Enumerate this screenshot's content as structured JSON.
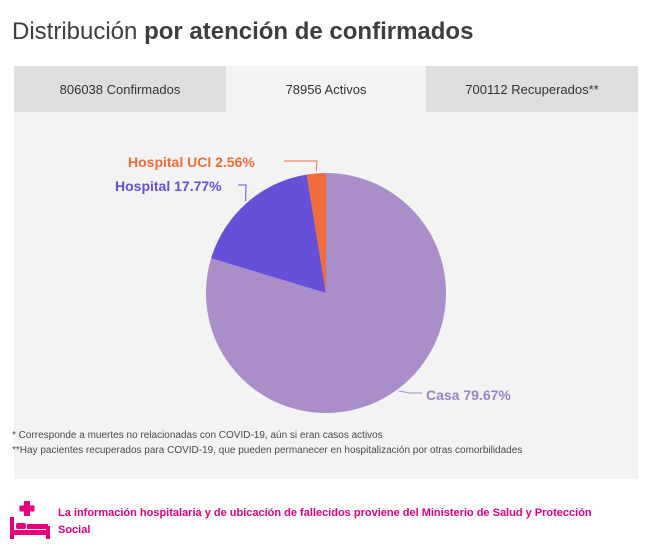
{
  "title": {
    "part1": "Distribución",
    "part2": "por atención de confirmados"
  },
  "tabs": [
    {
      "label": "806038 Confirmados",
      "active": false
    },
    {
      "label": "78956 Activos",
      "active": true
    },
    {
      "label": "700112 Recuperados**",
      "active": false
    }
  ],
  "chart_data": {
    "type": "pie",
    "title": "",
    "slices": [
      {
        "label": "Casa 79.67%",
        "name": "Casa",
        "value": 79.67,
        "color": "#a98ec9"
      },
      {
        "label": "Hospital 17.77%",
        "name": "Hospital",
        "value": 17.77,
        "color": "#6650d8"
      },
      {
        "label": "Hospital UCI 2.56%",
        "name": "Hospital UCI",
        "value": 2.56,
        "color": "#f26b3a"
      }
    ],
    "label_colors": {
      "Casa": "#9b82c4",
      "Hospital": "#6650d8",
      "Hospital UCI": "#f26b3a"
    }
  },
  "footnotes": [
    "* Corresponde a muertes no relacionadas con COVID-19, aún si eran casos activos",
    "**Hay pacientes recuperados para COVID-19, que pueden permanecer en hospitalización por otras comorbilidades"
  ],
  "info": {
    "text": "La información hospitalaria y de ubicación de fallecidos proviene del Ministerio de Salud y Protección Social",
    "icon": "hospital-bed-icon",
    "color": "#e6007e"
  }
}
